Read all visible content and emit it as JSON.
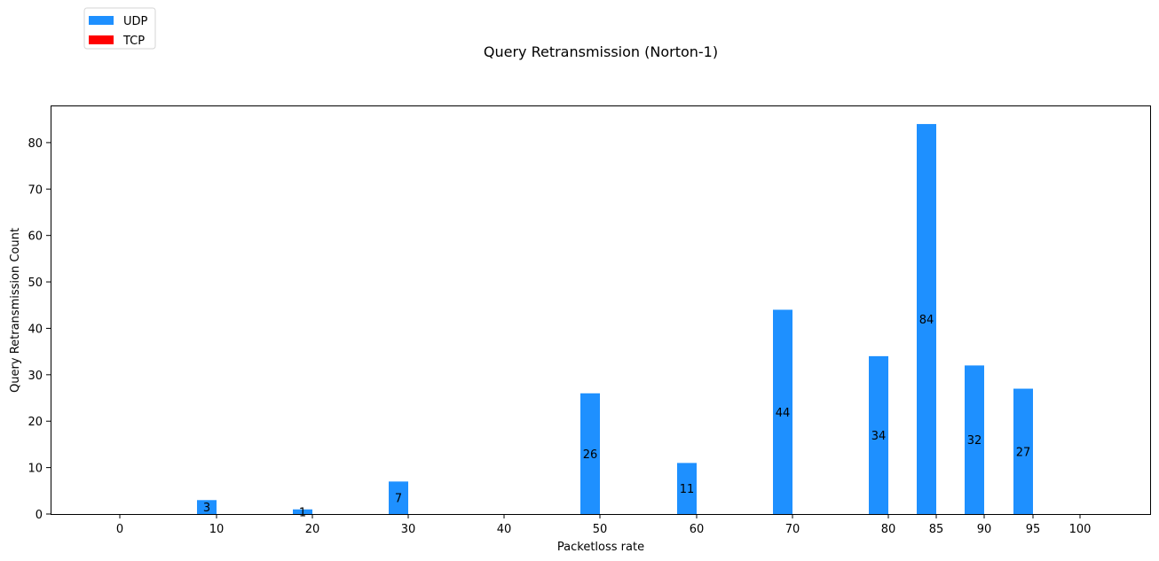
{
  "chart_data": {
    "type": "bar",
    "title": "Query Retransmission (Norton-1)",
    "xlabel": "Packetloss rate",
    "ylabel": "Query Retransmission Count",
    "categories": [
      "0",
      "10",
      "20",
      "30",
      "40",
      "50",
      "60",
      "70",
      "80",
      "85",
      "90",
      "95",
      "100"
    ],
    "series": [
      {
        "name": "UDP",
        "color": "#1e90ff",
        "values": [
          0,
          3,
          1,
          7,
          0,
          26,
          11,
          44,
          34,
          84,
          32,
          27,
          0
        ],
        "labels": [
          "",
          "3",
          "1",
          "7",
          "",
          "26",
          "11",
          "44",
          "34",
          "84",
          "32",
          "27",
          ""
        ]
      },
      {
        "name": "TCP",
        "color": "#ff0000",
        "values": [
          0,
          0,
          0,
          0,
          0,
          0,
          0,
          0,
          0,
          0,
          0,
          0,
          0
        ],
        "labels": [
          "",
          "",
          "",
          "",
          "",
          "",
          "",
          "",
          "",
          "",
          "",
          "",
          ""
        ]
      }
    ],
    "ylim": [
      0,
      88
    ],
    "yticks": [
      "0",
      "10",
      "20",
      "30",
      "40",
      "50",
      "60",
      "70",
      "80"
    ],
    "ytick_values": [
      0,
      10,
      20,
      30,
      40,
      50,
      60,
      70,
      80
    ],
    "grid": false,
    "legend_position": "top-left"
  }
}
